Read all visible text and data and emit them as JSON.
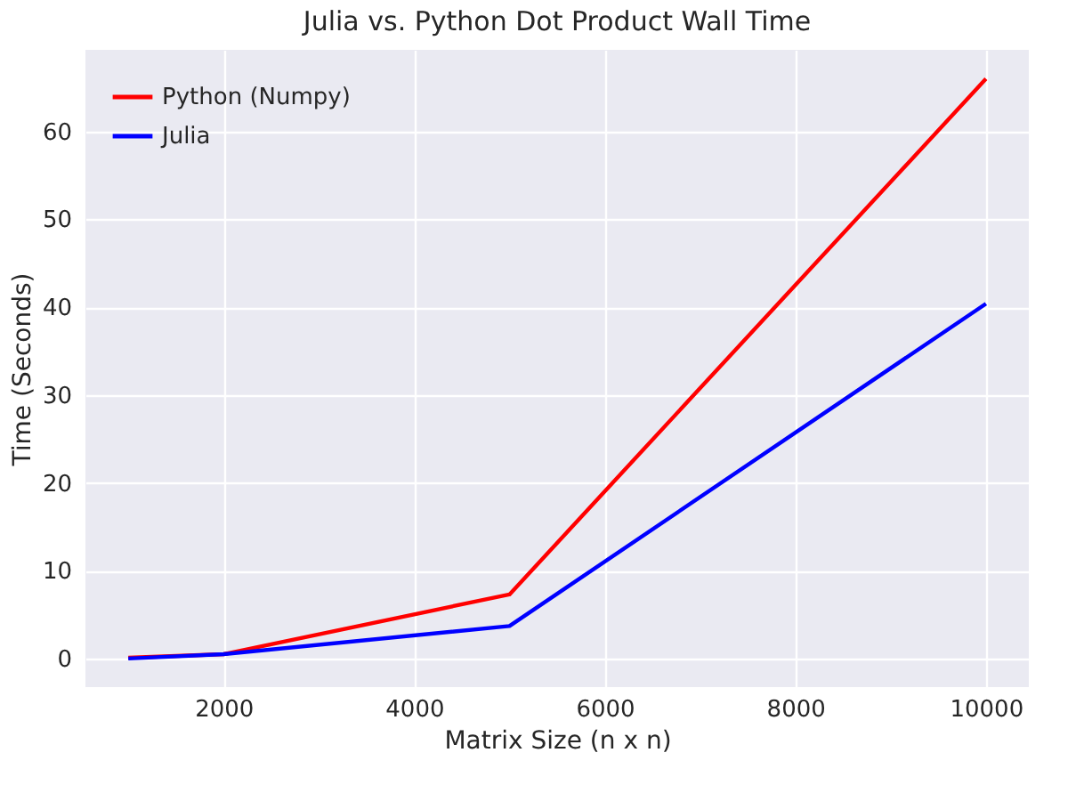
{
  "chart_data": {
    "type": "line",
    "title": "Julia vs. Python Dot Product Wall Time",
    "xlabel": "Matrix Size (n x n)",
    "ylabel": "Time (Seconds)",
    "x": [
      1000,
      2000,
      5000,
      10000
    ],
    "series": [
      {
        "name": "Python (Numpy)",
        "color": "#ff0000",
        "values": [
          0.1,
          0.5,
          7.3,
          66
        ]
      },
      {
        "name": "Julia",
        "color": "#0000ff",
        "values": [
          0,
          0.5,
          3.7,
          40.4
        ]
      }
    ],
    "xlim": [
      550,
      10450
    ],
    "xticks": [
      2000,
      4000,
      6000,
      8000,
      10000
    ],
    "ylim": [
      -3.25,
      69.3
    ],
    "yticks": [
      0,
      10,
      20,
      30,
      40,
      50,
      60
    ],
    "grid": true,
    "legend": "top left",
    "marker": "none",
    "line_style": "solid"
  }
}
